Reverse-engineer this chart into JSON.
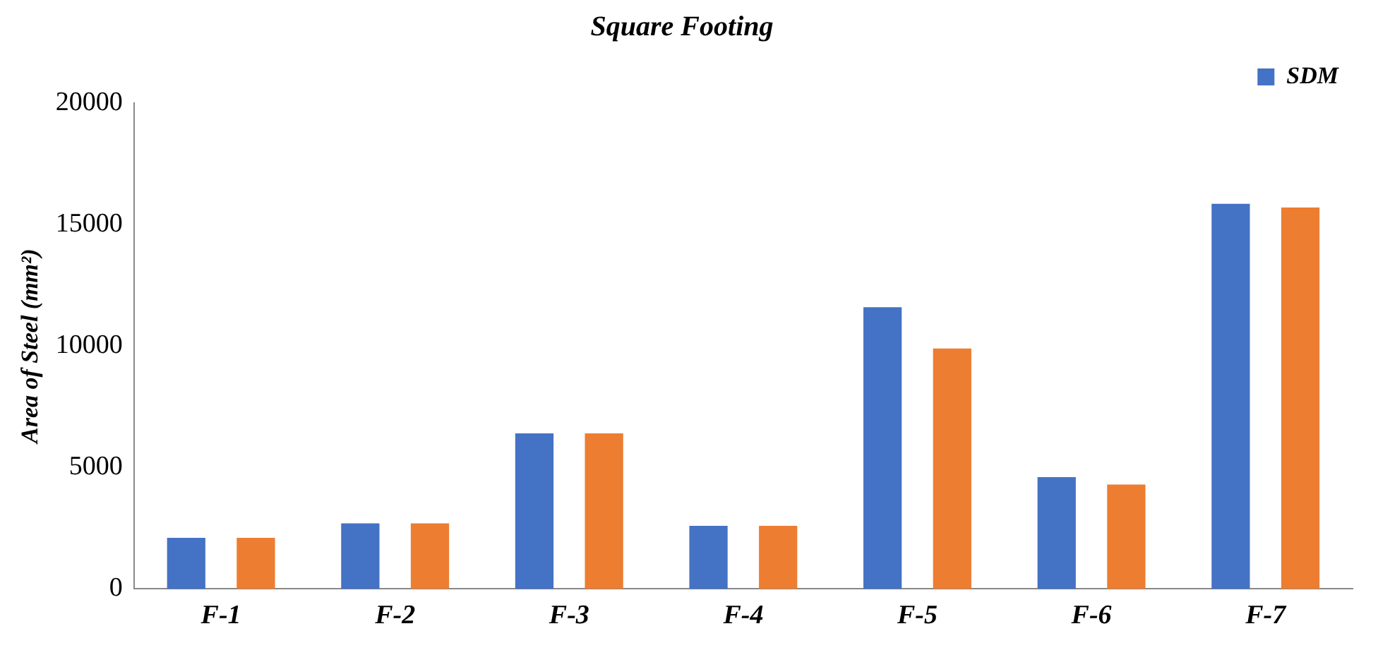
{
  "chart_data": {
    "type": "bar",
    "title": "Square Footing",
    "ylabel": "Area of Steel (mm²)",
    "categories": [
      "F-1",
      "F-2",
      "F-3",
      "F-4",
      "F-5",
      "F-6",
      "F-7"
    ],
    "series": [
      {
        "name": "SDM",
        "color": "#4472c4",
        "values": [
          2100,
          2700,
          6400,
          2600,
          11600,
          4600,
          15850
        ]
      },
      {
        "color": "#ed7d31",
        "values": [
          2100,
          2700,
          6400,
          2600,
          9900,
          4300,
          15700
        ]
      }
    ],
    "ylim": [
      0,
      20000
    ],
    "yticks": [
      0,
      5000,
      10000,
      15000,
      20000
    ],
    "grid": false,
    "legend": "top right"
  }
}
